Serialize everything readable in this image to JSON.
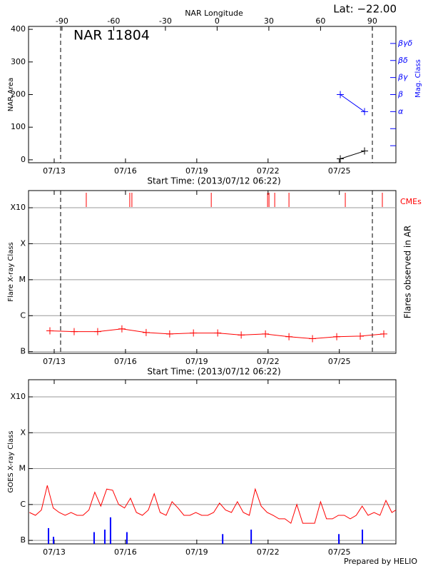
{
  "chart_data": [
    {
      "type": "line",
      "title": "NAR 11804",
      "annotation": "Lat: −22.00",
      "x2label": "NAR Longitude",
      "xlabel": "Start Time: (2013/07/12 06:22)",
      "ylabel": "NAR Area",
      "y2label": "Mag. Class",
      "xlim": [
        -0.34,
        15.12
      ],
      "xticks": [
        {
          "value": 0.74,
          "label": "07/13"
        },
        {
          "value": 3.74,
          "label": "07/16"
        },
        {
          "value": 6.74,
          "label": "07/19"
        },
        {
          "value": 9.74,
          "label": "07/22"
        },
        {
          "value": 12.74,
          "label": "07/25"
        }
      ],
      "x2lim": [
        -109.4,
        103.7
      ],
      "x2ticks": [
        -90,
        -60,
        -30,
        0,
        30,
        60,
        90
      ],
      "ylim": [
        -9,
        409
      ],
      "yticks": [
        0,
        100,
        200,
        300,
        400
      ],
      "y2lim": [
        0,
        8
      ],
      "y2ticks": [
        {
          "value": 1,
          "label": null
        },
        {
          "value": 2,
          "label": null
        },
        {
          "value": 3,
          "label": "α"
        },
        {
          "value": 4,
          "label": "β"
        },
        {
          "value": 5,
          "label": "βγ"
        },
        {
          "value": 6,
          "label": "βδ"
        },
        {
          "value": 7,
          "label": "βγδ"
        }
      ],
      "limb_lines": [
        1.01,
        14.13
      ],
      "series": [
        {
          "color": "#000000",
          "marker": "+",
          "x": [
            12.78,
            13.8
          ],
          "values": [
            3,
            27
          ]
        },
        {
          "color": "#0000ff",
          "marker": "+",
          "axis": "y2",
          "x": [
            12.78,
            13.8
          ],
          "values": [
            4,
            3
          ]
        }
      ]
    },
    {
      "type": "line",
      "xlabel": "Start Time: (2013/07/12 06:22)",
      "ylabel": "Flare X-ray Class",
      "y2label": "Flares observed in AR",
      "cme_label": "CMEs",
      "cme_color": "#ff0000",
      "log": true,
      "grid": true,
      "xlim": [
        -0.34,
        15.12
      ],
      "xticks": [
        {
          "value": 0.74,
          "label": "07/13"
        },
        {
          "value": 3.74,
          "label": "07/16"
        },
        {
          "value": 6.74,
          "label": "07/19"
        },
        {
          "value": 9.74,
          "label": "07/22"
        },
        {
          "value": 12.74,
          "label": "07/25"
        }
      ],
      "ylim": [
        9e-08,
        0.003
      ],
      "yticks": [
        {
          "value": 1e-07,
          "label": "B"
        },
        {
          "value": 1e-06,
          "label": "C"
        },
        {
          "value": 1e-05,
          "label": "M"
        },
        {
          "value": 0.0001,
          "label": "X"
        },
        {
          "value": 0.001,
          "label": "X10"
        }
      ],
      "limb_lines": [
        1.01,
        14.13
      ],
      "cmes": [
        2.09,
        3.92,
        4.01,
        7.35,
        9.72,
        9.78,
        10.02,
        10.62,
        12.99,
        14.55
      ],
      "series": [
        {
          "color": "#ff0000",
          "marker": "+",
          "x": [
            0.56,
            1.58,
            2.57,
            3.59,
            4.61,
            5.6,
            6.6,
            7.62,
            8.61,
            9.63,
            10.62,
            11.61,
            12.63,
            13.62,
            14.61
          ],
          "values": [
            3.8e-07,
            3.6e-07,
            3.6e-07,
            4.3e-07,
            3.4e-07,
            3.1e-07,
            3.3e-07,
            3.3e-07,
            2.9e-07,
            3.1e-07,
            2.6e-07,
            2.3e-07,
            2.6e-07,
            2.7e-07,
            3.1e-07
          ]
        }
      ]
    },
    {
      "type": "line",
      "ylabel": "GOES X-ray Class",
      "footer": "Prepared by HELIO",
      "log": true,
      "grid": true,
      "xlim": [
        -0.34,
        15.12
      ],
      "xticks": [
        {
          "value": 0.74,
          "label": "07/13"
        },
        {
          "value": 3.74,
          "label": "07/16"
        },
        {
          "value": 6.74,
          "label": "07/19"
        },
        {
          "value": 9.74,
          "label": "07/22"
        },
        {
          "value": 12.74,
          "label": "07/25"
        }
      ],
      "ylim": [
        8e-08,
        0.003
      ],
      "yticks": [
        {
          "value": 1e-07,
          "label": "B"
        },
        {
          "value": 1e-06,
          "label": "C"
        },
        {
          "value": 1e-05,
          "label": "M"
        },
        {
          "value": 0.0001,
          "label": "X"
        },
        {
          "value": 0.001,
          "label": "X10"
        }
      ],
      "series": [
        {
          "color": "#ff0000",
          "x": [
            -0.3,
            -0.05,
            0.2,
            0.45,
            0.7,
            0.95,
            1.2,
            1.45,
            1.7,
            1.95,
            2.2,
            2.45,
            2.7,
            2.95,
            3.2,
            3.45,
            3.7,
            3.95,
            4.2,
            4.45,
            4.7,
            4.95,
            5.2,
            5.45,
            5.7,
            5.95,
            6.2,
            6.45,
            6.7,
            6.95,
            7.2,
            7.45,
            7.7,
            7.95,
            8.2,
            8.45,
            8.7,
            8.95,
            9.2,
            9.45,
            9.7,
            9.95,
            10.2,
            10.45,
            10.7,
            10.95,
            11.2,
            11.45,
            11.7,
            11.95,
            12.2,
            12.45,
            12.7,
            12.95,
            13.2,
            13.45,
            13.7,
            13.95,
            14.2,
            14.45,
            14.7,
            14.95,
            15.12
          ],
          "values": [
            6e-07,
            5e-07,
            7e-07,
            3.4e-06,
            8e-07,
            6e-07,
            5e-07,
            6e-07,
            5e-07,
            5e-07,
            7e-07,
            2.2e-06,
            9e-07,
            2.7e-06,
            2.5e-06,
            1e-06,
            8e-07,
            1.5e-06,
            6e-07,
            5e-07,
            7e-07,
            2e-06,
            6e-07,
            5e-07,
            1.2e-06,
            8e-07,
            5e-07,
            5e-07,
            6e-07,
            5e-07,
            5e-07,
            6e-07,
            1.1e-06,
            7e-07,
            6e-07,
            1.2e-06,
            6e-07,
            5e-07,
            2.7e-06,
            9e-07,
            6e-07,
            5e-07,
            4e-07,
            4e-07,
            3e-07,
            1e-06,
            3e-07,
            3e-07,
            3e-07,
            1.2e-06,
            4e-07,
            4e-07,
            5e-07,
            5e-07,
            4e-07,
            5e-07,
            9e-07,
            5e-07,
            6e-07,
            5e-07,
            1.3e-06,
            6e-07,
            7e-07
          ]
        },
        {
          "color": "#0000ff",
          "type": "bar",
          "x": [
            0.5,
            0.71,
            2.42,
            2.87,
            3.11,
            3.8,
            7.83,
            9.03,
            12.72,
            13.71
          ],
          "values": [
            2.2e-07,
            1.26e-07,
            1.7e-07,
            2e-07,
            4.4e-07,
            1.7e-07,
            1.5e-07,
            2e-07,
            1.5e-07,
            2e-07
          ]
        }
      ]
    }
  ]
}
